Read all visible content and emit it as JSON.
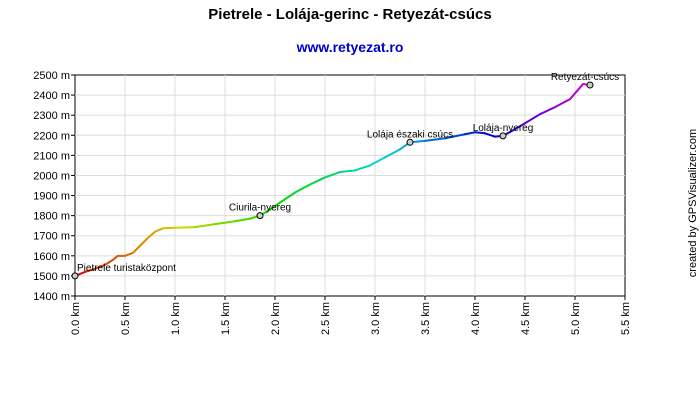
{
  "title": "Pietrele - Lolája-gerinc - Retyezát-csúcs",
  "subtitle": "www.retyezat.ro",
  "credit": "created by GPSVisualizer.com",
  "chart_data": {
    "type": "line",
    "xlim": [
      0,
      5.5
    ],
    "ylim": [
      1400,
      2500
    ],
    "x_ticks": [
      {
        "value": 0.0,
        "label": "0.0 km"
      },
      {
        "value": 0.5,
        "label": "0.5 km"
      },
      {
        "value": 1.0,
        "label": "1.0 km"
      },
      {
        "value": 1.5,
        "label": "1.5 km"
      },
      {
        "value": 2.0,
        "label": "2.0 km"
      },
      {
        "value": 2.5,
        "label": "2.5 km"
      },
      {
        "value": 3.0,
        "label": "3.0 km"
      },
      {
        "value": 3.5,
        "label": "3.5 km"
      },
      {
        "value": 4.0,
        "label": "4.0 km"
      },
      {
        "value": 4.5,
        "label": "4.5 km"
      },
      {
        "value": 5.0,
        "label": "5.0 km"
      },
      {
        "value": 5.5,
        "label": "5.5 km"
      }
    ],
    "y_ticks": [
      {
        "value": 1400,
        "label": "1400 m"
      },
      {
        "value": 1500,
        "label": "1500 m"
      },
      {
        "value": 1600,
        "label": "1600 m"
      },
      {
        "value": 1700,
        "label": "1700 m"
      },
      {
        "value": 1800,
        "label": "1800 m"
      },
      {
        "value": 1900,
        "label": "1900 m"
      },
      {
        "value": 2000,
        "label": "2000 m"
      },
      {
        "value": 2100,
        "label": "2100 m"
      },
      {
        "value": 2200,
        "label": "2200 m"
      },
      {
        "value": 2300,
        "label": "2300 m"
      },
      {
        "value": 2400,
        "label": "2400 m"
      },
      {
        "value": 2500,
        "label": "2500 m"
      }
    ],
    "grid": true,
    "points": [
      {
        "x": 0.0,
        "y": 1500
      },
      {
        "x": 0.1,
        "y": 1520
      },
      {
        "x": 0.2,
        "y": 1535
      },
      {
        "x": 0.3,
        "y": 1555
      },
      {
        "x": 0.38,
        "y": 1580
      },
      {
        "x": 0.43,
        "y": 1600
      },
      {
        "x": 0.5,
        "y": 1600
      },
      {
        "x": 0.58,
        "y": 1615
      },
      {
        "x": 0.65,
        "y": 1650
      },
      {
        "x": 0.72,
        "y": 1685
      },
      {
        "x": 0.8,
        "y": 1720
      },
      {
        "x": 0.88,
        "y": 1737
      },
      {
        "x": 1.0,
        "y": 1740
      },
      {
        "x": 1.2,
        "y": 1743
      },
      {
        "x": 1.4,
        "y": 1758
      },
      {
        "x": 1.6,
        "y": 1772
      },
      {
        "x": 1.75,
        "y": 1785
      },
      {
        "x": 1.85,
        "y": 1800
      },
      {
        "x": 1.95,
        "y": 1830
      },
      {
        "x": 2.05,
        "y": 1865
      },
      {
        "x": 2.2,
        "y": 1915
      },
      {
        "x": 2.35,
        "y": 1955
      },
      {
        "x": 2.5,
        "y": 1990
      },
      {
        "x": 2.65,
        "y": 2017
      },
      {
        "x": 2.8,
        "y": 2025
      },
      {
        "x": 2.95,
        "y": 2050
      },
      {
        "x": 3.1,
        "y": 2090
      },
      {
        "x": 3.25,
        "y": 2130
      },
      {
        "x": 3.35,
        "y": 2165
      },
      {
        "x": 3.5,
        "y": 2172
      },
      {
        "x": 3.7,
        "y": 2185
      },
      {
        "x": 3.9,
        "y": 2205
      },
      {
        "x": 4.0,
        "y": 2215
      },
      {
        "x": 4.1,
        "y": 2210
      },
      {
        "x": 4.2,
        "y": 2193
      },
      {
        "x": 4.28,
        "y": 2197
      },
      {
        "x": 4.4,
        "y": 2230
      },
      {
        "x": 4.5,
        "y": 2260
      },
      {
        "x": 4.65,
        "y": 2305
      },
      {
        "x": 4.8,
        "y": 2340
      },
      {
        "x": 4.95,
        "y": 2380
      },
      {
        "x": 5.02,
        "y": 2420
      },
      {
        "x": 5.08,
        "y": 2455
      },
      {
        "x": 5.15,
        "y": 2450
      }
    ],
    "waypoints": [
      {
        "x": 0.0,
        "y": 1500,
        "label": "Pietrele turistaközpont"
      },
      {
        "x": 1.85,
        "y": 1800,
        "label": "Ciurila-nyereg"
      },
      {
        "x": 3.35,
        "y": 2165,
        "label": "Lolája északi csúcs"
      },
      {
        "x": 4.28,
        "y": 2197,
        "label": "Lolája-nyereg"
      },
      {
        "x": 5.15,
        "y": 2450,
        "label": "Retyezát-csúcs"
      }
    ]
  }
}
